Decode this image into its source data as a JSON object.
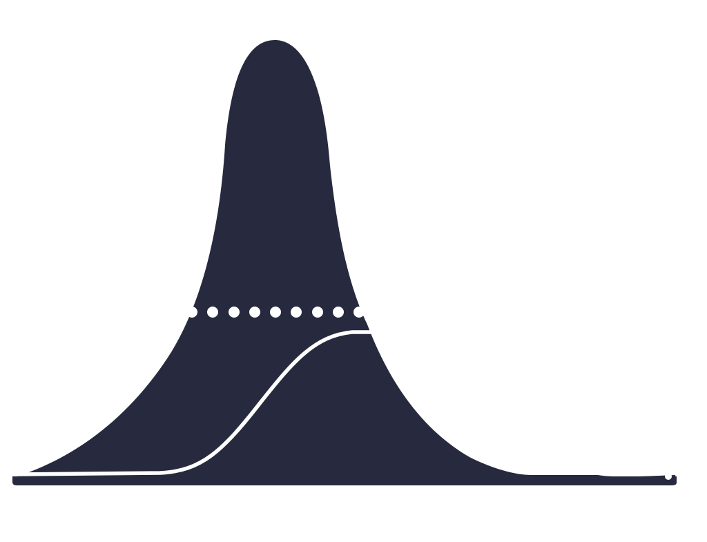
{
  "graphic": {
    "kind": "bell-curve-silhouette",
    "colors": {
      "background": "#ffffff",
      "fill": "#272a3e",
      "line": "#ffffff"
    },
    "dot_count": 9
  }
}
